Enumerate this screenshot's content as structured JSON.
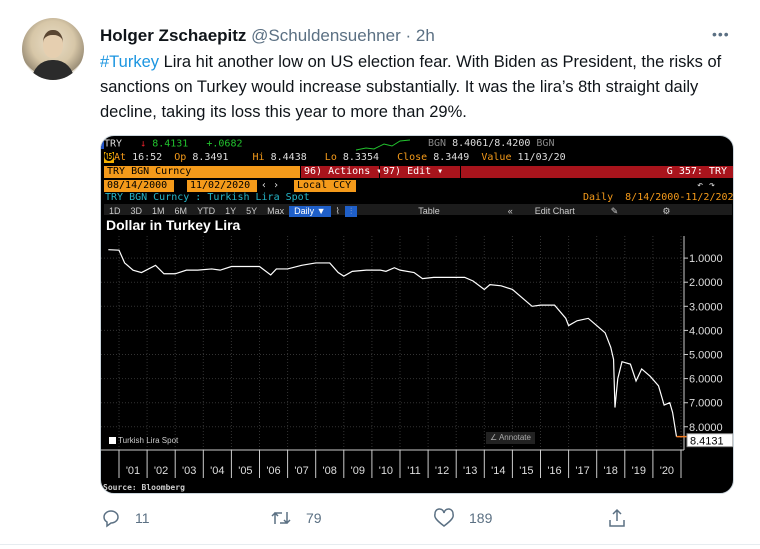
{
  "tweet": {
    "name": "Holger Zschaepitz",
    "handle": "@Schuldensuehner",
    "sep": " · ",
    "time": "2h",
    "more": "•••",
    "hashtag": "#Turkey",
    "body": " Lira hit another low on US election fear. With Biden as President, the risks of sanctions on Turkey would increase substantially. It was the lira’s 8th straight daily decline, taking its loss this year to more than 29%."
  },
  "terminal": {
    "ticker": "TRY",
    "arrow": "↓",
    "last": "8.4131",
    "change": "+.0682",
    "bgn1": "BGN",
    "bid": "8.4061",
    "ask": "/8.4200",
    "bgn2": "BGN",
    "at_label": "At",
    "at": "16:52",
    "op_label": "Op",
    "op": "8.3491",
    "hi_label": "Hi",
    "hi": "8.4438",
    "lo_label": "Lo",
    "lo": "8.3354",
    "close_label": "Close",
    "close": "8.3449",
    "value_label": "Value",
    "value": "11/03/20",
    "security": "TRY BGN Curncy",
    "actions": "96) Actions ▾",
    "edit": "97) Edit ▾",
    "page": "G 357: TRY",
    "start_date": "08/14/2000",
    "end_date": "11/02/2020",
    "currency": "Local CCY",
    "series_desc": "TRY BGN Curncy : Turkish Lira Spot",
    "period_label": "Daily",
    "period_range": "8/14/2000-11/2/2020",
    "ranges": [
      "1D",
      "3D",
      "1M",
      "6M",
      "YTD",
      "1Y",
      "5Y",
      "Max"
    ],
    "frequency": "Daily ▼",
    "table": "Table",
    "edit_chart": "Edit Chart",
    "annotate": "Annotate",
    "source": "Source: Bloomberg"
  },
  "chart_data": {
    "type": "line",
    "title": "Dollar in Turkey Lira",
    "legend": "Turkish Lira Spot",
    "legend_position": "bottom-left",
    "y_inverted": true,
    "ylim": [
      0.3,
      8.6
    ],
    "yticks": [
      "1.0000",
      "2.0000",
      "3.0000",
      "4.0000",
      "5.0000",
      "6.0000",
      "7.0000",
      "8.0000"
    ],
    "xticks": [
      "'01",
      "'02",
      "'03",
      "'04",
      "'05",
      "'06",
      "'07",
      "'08",
      "'09",
      "'10",
      "'11",
      "'12",
      "'13",
      "'14",
      "'15",
      "'16",
      "'17",
      "'18",
      "'19",
      "'20"
    ],
    "last_value_label": "8.4131",
    "line_color": "#ffffff",
    "last_marker_color": "#f47b20",
    "series": [
      {
        "x": [
          2000.62,
          2001.0,
          2001.2,
          2001.5,
          2001.8,
          2002.3,
          2002.6,
          2003.0,
          2003.4,
          2003.8,
          2004.3,
          2004.6,
          2005.0,
          2006.0,
          2006.4,
          2006.6,
          2007.0,
          2007.5,
          2008.0,
          2008.5,
          2008.8,
          2009.0,
          2009.3,
          2009.8,
          2010.3,
          2010.5,
          2010.8,
          2011.0,
          2011.5,
          2011.8,
          2012.2,
          2012.8,
          2013.3,
          2013.6,
          2014.0,
          2014.2,
          2014.6,
          2015.0,
          2015.4,
          2015.7,
          2016.0,
          2016.5,
          2016.9,
          2017.0,
          2017.3,
          2017.7,
          2018.0,
          2018.3,
          2018.5,
          2018.6,
          2018.65,
          2018.75,
          2018.9,
          2019.2,
          2019.4,
          2019.6,
          2019.9,
          2020.2,
          2020.4,
          2020.6,
          2020.7,
          2020.84
        ],
        "y": [
          0.65,
          0.67,
          1.2,
          1.5,
          1.6,
          1.3,
          1.65,
          1.65,
          1.5,
          1.5,
          1.45,
          1.5,
          1.35,
          1.35,
          1.7,
          1.45,
          1.45,
          1.3,
          1.2,
          1.2,
          1.6,
          1.75,
          1.55,
          1.5,
          1.5,
          1.55,
          1.4,
          1.5,
          1.6,
          1.85,
          1.8,
          1.8,
          1.8,
          1.95,
          2.3,
          2.1,
          2.15,
          2.3,
          2.7,
          3.0,
          2.95,
          2.95,
          3.5,
          3.8,
          3.6,
          3.5,
          3.8,
          4.1,
          4.7,
          5.2,
          7.2,
          6.0,
          5.3,
          5.4,
          6.1,
          5.6,
          5.9,
          6.3,
          7.1,
          7.0,
          7.4,
          8.41
        ]
      }
    ]
  },
  "actions": {
    "reply": "11",
    "retweet": "79",
    "like": "189"
  }
}
